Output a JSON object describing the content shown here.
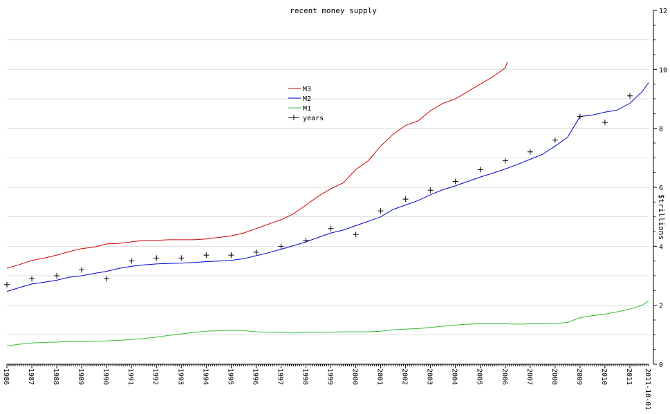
{
  "chart_data": {
    "type": "line",
    "title": "recent money supply",
    "ylabel": "$trillions",
    "ylim": [
      0,
      12
    ],
    "yticks": [
      0,
      2,
      4,
      6,
      8,
      10,
      12
    ],
    "xlim": [
      1986.0,
      2011.75
    ],
    "x_tick_labels": [
      "1986",
      "1987",
      "1988",
      "1989",
      "1990",
      "1991",
      "1992",
      "1993",
      "1994",
      "1995",
      "1996",
      "1997",
      "1998",
      "1999",
      "2000",
      "2001",
      "2002",
      "2003",
      "2004",
      "2005",
      "2006",
      "2007",
      "2008",
      "2009",
      "2010",
      "2011",
      "2011-10-01"
    ],
    "grid": true,
    "legend_position": "upper-center",
    "series": [
      {
        "name": "M3",
        "color": "#cc0000",
        "points": [
          [
            1986.0,
            3.25
          ],
          [
            1986.5,
            3.38
          ],
          [
            1987.0,
            3.52
          ],
          [
            1987.5,
            3.6
          ],
          [
            1988.0,
            3.7
          ],
          [
            1988.5,
            3.82
          ],
          [
            1989.0,
            3.92
          ],
          [
            1989.5,
            3.97
          ],
          [
            1990.0,
            4.08
          ],
          [
            1990.5,
            4.1
          ],
          [
            1991.0,
            4.15
          ],
          [
            1991.5,
            4.2
          ],
          [
            1992.0,
            4.2
          ],
          [
            1992.5,
            4.22
          ],
          [
            1993.0,
            4.22
          ],
          [
            1993.5,
            4.22
          ],
          [
            1994.0,
            4.25
          ],
          [
            1994.5,
            4.3
          ],
          [
            1995.0,
            4.35
          ],
          [
            1995.5,
            4.45
          ],
          [
            1996.0,
            4.6
          ],
          [
            1996.5,
            4.75
          ],
          [
            1997.0,
            4.9
          ],
          [
            1997.5,
            5.1
          ],
          [
            1998.0,
            5.4
          ],
          [
            1998.5,
            5.7
          ],
          [
            1999.0,
            5.95
          ],
          [
            1999.5,
            6.15
          ],
          [
            2000.0,
            6.6
          ],
          [
            2000.5,
            6.9
          ],
          [
            2001.0,
            7.4
          ],
          [
            2001.5,
            7.8
          ],
          [
            2002.0,
            8.1
          ],
          [
            2002.5,
            8.25
          ],
          [
            2003.0,
            8.6
          ],
          [
            2003.5,
            8.85
          ],
          [
            2004.0,
            9.0
          ],
          [
            2004.5,
            9.25
          ],
          [
            2005.0,
            9.5
          ],
          [
            2005.5,
            9.75
          ],
          [
            2006.0,
            10.05
          ],
          [
            2006.08,
            10.25
          ]
        ]
      },
      {
        "name": "M2",
        "color": "#0000cc",
        "points": [
          [
            1986.0,
            2.47
          ],
          [
            1986.5,
            2.6
          ],
          [
            1987.0,
            2.72
          ],
          [
            1987.5,
            2.78
          ],
          [
            1988.0,
            2.85
          ],
          [
            1988.5,
            2.95
          ],
          [
            1989.0,
            3.0
          ],
          [
            1989.5,
            3.08
          ],
          [
            1990.0,
            3.15
          ],
          [
            1990.5,
            3.25
          ],
          [
            1991.0,
            3.32
          ],
          [
            1991.5,
            3.37
          ],
          [
            1992.0,
            3.4
          ],
          [
            1992.5,
            3.42
          ],
          [
            1993.0,
            3.43
          ],
          [
            1993.5,
            3.45
          ],
          [
            1994.0,
            3.48
          ],
          [
            1994.5,
            3.5
          ],
          [
            1995.0,
            3.52
          ],
          [
            1995.5,
            3.58
          ],
          [
            1996.0,
            3.68
          ],
          [
            1996.5,
            3.78
          ],
          [
            1997.0,
            3.9
          ],
          [
            1997.5,
            4.02
          ],
          [
            1998.0,
            4.15
          ],
          [
            1998.5,
            4.3
          ],
          [
            1999.0,
            4.45
          ],
          [
            1999.5,
            4.55
          ],
          [
            2000.0,
            4.7
          ],
          [
            2000.5,
            4.85
          ],
          [
            2001.0,
            5.0
          ],
          [
            2001.5,
            5.25
          ],
          [
            2002.0,
            5.4
          ],
          [
            2002.5,
            5.55
          ],
          [
            2003.0,
            5.75
          ],
          [
            2003.5,
            5.92
          ],
          [
            2004.0,
            6.05
          ],
          [
            2004.5,
            6.2
          ],
          [
            2005.0,
            6.35
          ],
          [
            2005.5,
            6.48
          ],
          [
            2006.0,
            6.62
          ],
          [
            2006.5,
            6.78
          ],
          [
            2007.0,
            6.95
          ],
          [
            2007.5,
            7.12
          ],
          [
            2008.0,
            7.4
          ],
          [
            2008.5,
            7.7
          ],
          [
            2009.0,
            8.4
          ],
          [
            2009.5,
            8.45
          ],
          [
            2010.0,
            8.55
          ],
          [
            2010.5,
            8.62
          ],
          [
            2011.0,
            8.85
          ],
          [
            2011.5,
            9.25
          ],
          [
            2011.75,
            9.55
          ]
        ]
      },
      {
        "name": "M1",
        "color": "#33bb33",
        "points": [
          [
            1986.0,
            0.62
          ],
          [
            1986.5,
            0.68
          ],
          [
            1987.0,
            0.72
          ],
          [
            1987.5,
            0.74
          ],
          [
            1988.0,
            0.75
          ],
          [
            1988.5,
            0.77
          ],
          [
            1989.0,
            0.77
          ],
          [
            1989.5,
            0.78
          ],
          [
            1990.0,
            0.79
          ],
          [
            1990.5,
            0.81
          ],
          [
            1991.0,
            0.84
          ],
          [
            1991.5,
            0.87
          ],
          [
            1992.0,
            0.92
          ],
          [
            1992.5,
            0.98
          ],
          [
            1993.0,
            1.03
          ],
          [
            1993.5,
            1.08
          ],
          [
            1994.0,
            1.12
          ],
          [
            1994.5,
            1.14
          ],
          [
            1995.0,
            1.15
          ],
          [
            1995.5,
            1.14
          ],
          [
            1996.0,
            1.1
          ],
          [
            1996.5,
            1.08
          ],
          [
            1997.0,
            1.07
          ],
          [
            1997.5,
            1.06
          ],
          [
            1998.0,
            1.07
          ],
          [
            1998.5,
            1.08
          ],
          [
            1999.0,
            1.09
          ],
          [
            1999.5,
            1.1
          ],
          [
            2000.0,
            1.1
          ],
          [
            2000.5,
            1.1
          ],
          [
            2001.0,
            1.12
          ],
          [
            2001.5,
            1.17
          ],
          [
            2002.0,
            1.19
          ],
          [
            2002.5,
            1.21
          ],
          [
            2003.0,
            1.25
          ],
          [
            2003.5,
            1.29
          ],
          [
            2004.0,
            1.33
          ],
          [
            2004.5,
            1.36
          ],
          [
            2005.0,
            1.37
          ],
          [
            2005.5,
            1.37
          ],
          [
            2006.0,
            1.37
          ],
          [
            2006.5,
            1.36
          ],
          [
            2007.0,
            1.37
          ],
          [
            2007.5,
            1.37
          ],
          [
            2008.0,
            1.38
          ],
          [
            2008.5,
            1.42
          ],
          [
            2009.0,
            1.58
          ],
          [
            2009.5,
            1.65
          ],
          [
            2010.0,
            1.7
          ],
          [
            2010.5,
            1.78
          ],
          [
            2011.0,
            1.87
          ],
          [
            2011.5,
            2.0
          ],
          [
            2011.75,
            2.15
          ]
        ]
      },
      {
        "name": "years",
        "color": "#000000",
        "marker": "plus",
        "points": [
          [
            1986.0,
            2.7
          ],
          [
            1987.0,
            2.9
          ],
          [
            1988.0,
            3.0
          ],
          [
            1989.0,
            3.2
          ],
          [
            1990.0,
            2.9
          ],
          [
            1991.0,
            3.5
          ],
          [
            1992.0,
            3.6
          ],
          [
            1993.0,
            3.6
          ],
          [
            1994.0,
            3.7
          ],
          [
            1995.0,
            3.7
          ],
          [
            1996.0,
            3.8
          ],
          [
            1997.0,
            4.0
          ],
          [
            1998.0,
            4.2
          ],
          [
            1999.0,
            4.6
          ],
          [
            2000.0,
            4.4
          ],
          [
            2001.0,
            5.2
          ],
          [
            2002.0,
            5.6
          ],
          [
            2003.0,
            5.9
          ],
          [
            2004.0,
            6.2
          ],
          [
            2005.0,
            6.6
          ],
          [
            2006.0,
            6.9
          ],
          [
            2007.0,
            7.2
          ],
          [
            2008.0,
            7.6
          ],
          [
            2009.0,
            8.4
          ],
          [
            2010.0,
            8.2
          ],
          [
            2011.0,
            9.1
          ]
        ]
      }
    ]
  }
}
